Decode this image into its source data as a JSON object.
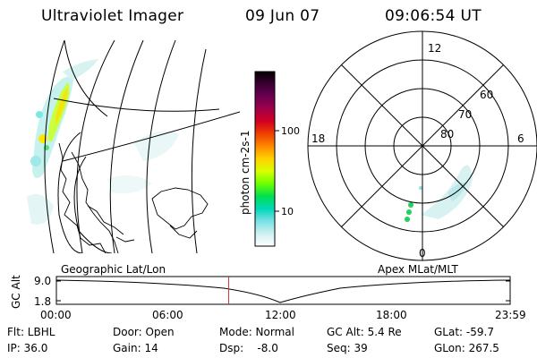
{
  "header": {
    "title": "Ultraviolet Imager",
    "date": "09 Jun 07",
    "time": "09:06:54 UT"
  },
  "colorbar": {
    "label": "photon cm-2s-1",
    "ticks": [
      "100",
      "10"
    ],
    "colors": [
      "#000000",
      "#3b0033",
      "#6b0050",
      "#a0004a",
      "#d20020",
      "#f04000",
      "#ff8a00",
      "#ffd200",
      "#d8ff00",
      "#6cff00",
      "#00e050",
      "#00d8b8",
      "#7ae0e8",
      "#d0f0f0",
      "#ffffff"
    ]
  },
  "left_panel": {
    "label": "Geographic Lat/Lon"
  },
  "right_panel": {
    "label": "Apex MLat/MLT",
    "mlt_labels": [
      "12",
      "18",
      "6",
      "0"
    ],
    "lat_labels": [
      "60",
      "70",
      "80"
    ]
  },
  "altitude_plot": {
    "ylabel": "GC Alt",
    "y_ticks": [
      "9.0",
      "1.8"
    ],
    "x_ticks": [
      "00:00",
      "06:00",
      "12:00",
      "18:00",
      "23:59"
    ],
    "current_time_hours": 9.115
  },
  "info": {
    "filter": "Flt: LBHL",
    "ip": "IP: 36.0",
    "door": "Door: Open",
    "gain": "Gain: 14",
    "mode": "Mode: Normal",
    "dsp": "Dsp:    -8.0",
    "gc_alt": "GC Alt: 5.4 Re",
    "seq": "Seq: 39",
    "glat": "GLat: -59.7",
    "glon": "GLon: 267.5"
  }
}
